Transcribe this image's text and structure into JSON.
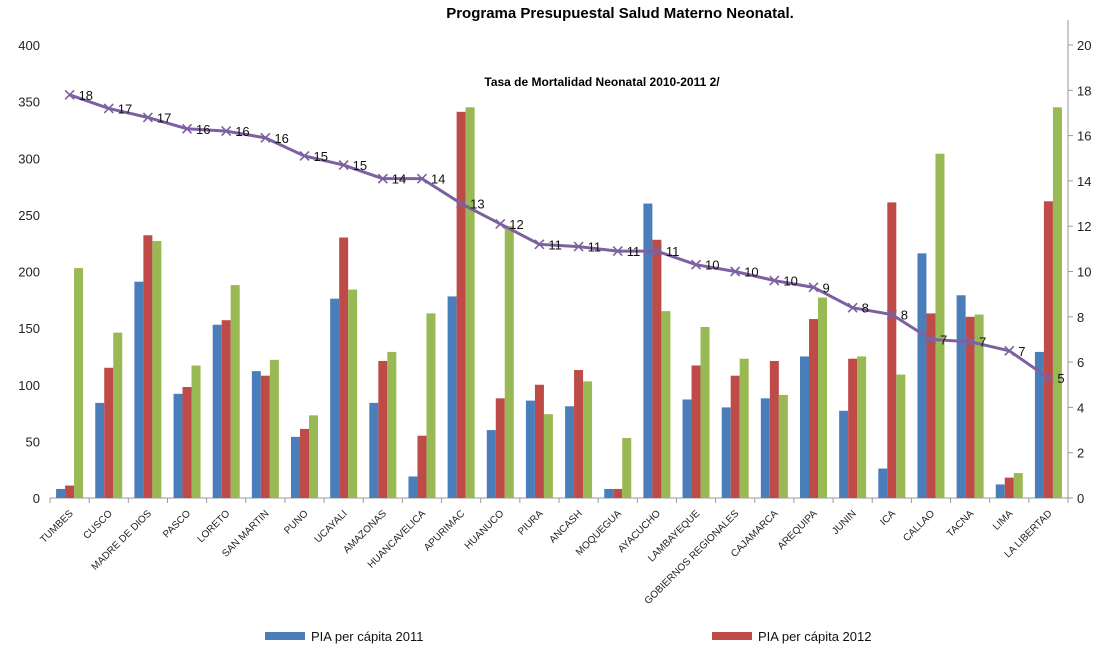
{
  "chart_data": {
    "type": "bar",
    "title": "Programa Presupuestal Salud Materno Neonatal.",
    "subtitle": "Tasa de Mortalidad Neonatal 2010-2011 2/",
    "categories": [
      "TUMBES",
      "CUSCO",
      "MADRE DE DIOS",
      "PASCO",
      "LORETO",
      "SAN MARTIN",
      "PUNO",
      "UCAYALI",
      "AMAZONAS",
      "HUANCAVELICA",
      "APURIMAC",
      "HUANUCO",
      "PIURA",
      "ANCASH",
      "MOQUEGUA",
      "AYACUCHO",
      "LAMBAYEQUE",
      "GOBIERNOS REGIONALES",
      "CAJAMARCA",
      "AREQUIPA",
      "JUNIN",
      "ICA",
      "CALLAO",
      "TACNA",
      "LIMA",
      "LA LIBERTAD"
    ],
    "series": [
      {
        "name": "PIA per cápita 2011",
        "color": "#4a7ebb",
        "axis": "left",
        "type": "bar",
        "values": [
          8,
          84,
          191,
          92,
          153,
          112,
          54,
          176,
          84,
          19,
          178,
          60,
          86,
          81,
          8,
          260,
          87,
          80,
          88,
          125,
          77,
          26,
          216,
          179,
          12,
          129
        ]
      },
      {
        "name": "PIA per cápita 2012",
        "color": "#be4b48",
        "axis": "left",
        "type": "bar",
        "values": [
          11,
          115,
          232,
          98,
          157,
          108,
          61,
          230,
          121,
          55,
          341,
          88,
          100,
          113,
          8,
          228,
          117,
          108,
          121,
          158,
          123,
          261,
          163,
          160,
          18,
          262
        ]
      },
      {
        "name": "",
        "color": "#98b954",
        "axis": "left",
        "type": "bar",
        "values": [
          203,
          146,
          227,
          117,
          188,
          122,
          73,
          184,
          129,
          163,
          345,
          240,
          74,
          103,
          53,
          165,
          151,
          123,
          91,
          177,
          125,
          109,
          304,
          162,
          22,
          345
        ]
      },
      {
        "name": "",
        "color": "#7d60a0",
        "axis": "right",
        "type": "line",
        "values": [
          17.8,
          17.2,
          16.8,
          16.3,
          16.2,
          15.9,
          15.1,
          14.7,
          14.1,
          14.1,
          13.0,
          12.1,
          11.2,
          11.1,
          10.9,
          10.9,
          10.3,
          10.0,
          9.6,
          9.3,
          8.4,
          8.1,
          7.0,
          6.9,
          6.5,
          5.3
        ],
        "labels": [
          "18",
          "17",
          "17",
          "16",
          "16",
          "16",
          "15",
          "15",
          "14",
          "14",
          "13",
          "12",
          "11",
          "11",
          "11",
          "11",
          "10",
          "10",
          "10",
          "9",
          "8",
          "8",
          "7",
          "7",
          "7",
          "5"
        ]
      }
    ],
    "ylim": [
      0,
      400
    ],
    "y_ticks": [
      0,
      50,
      100,
      150,
      200,
      250,
      300,
      350,
      400
    ],
    "y2lim": [
      0,
      20
    ],
    "y2_ticks": [
      0,
      2,
      4,
      6,
      8,
      10,
      12,
      14,
      16,
      18,
      20
    ],
    "legend": {
      "position": "bottom",
      "entries": [
        "PIA per cápita 2011",
        "PIA per cápita 2012"
      ]
    },
    "grid": false
  }
}
